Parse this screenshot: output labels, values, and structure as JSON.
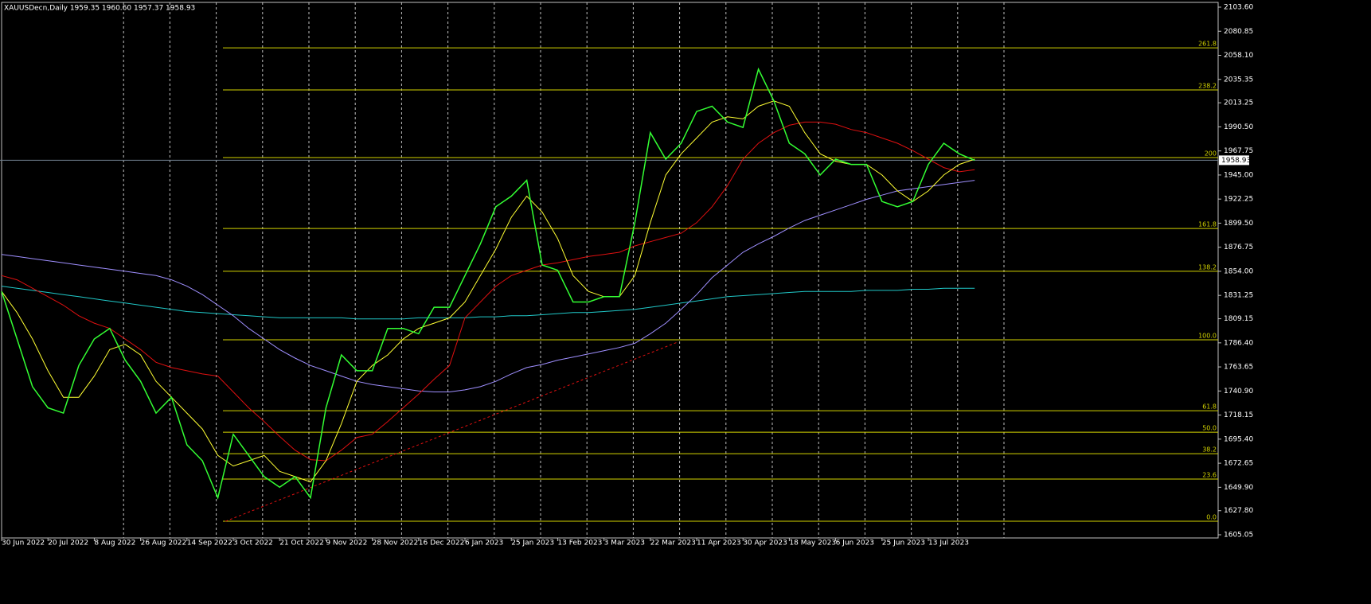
{
  "chart_data": {
    "type": "line",
    "title": "XAUUSDecn,Daily  1959.35 1960.60 1957.37 1958.93",
    "x": [
      "30 Jun 2022",
      null,
      null,
      "20 Jul 2022",
      null,
      null,
      "8 Aug 2022",
      null,
      null,
      "26 Aug 2022",
      null,
      null,
      "14 Sep 2022",
      null,
      null,
      "3 Oct 2022",
      null,
      null,
      "21 Oct 2022",
      null,
      null,
      "9 Nov 2022",
      null,
      null,
      "28 Nov 2022",
      null,
      null,
      "16 Dec 2022",
      null,
      null,
      "6 Jan 2023",
      null,
      null,
      "25 Jan 2023",
      null,
      null,
      "13 Feb 2023",
      null,
      null,
      "3 Mar 2023",
      null,
      null,
      "22 Mar 2023",
      null,
      null,
      "11 Apr 2023",
      null,
      null,
      "30 Apr 2023",
      null,
      null,
      "18 May 2023",
      null,
      null,
      "6 Jun 2023",
      null,
      null,
      "25 Jun 2023",
      null,
      null,
      "13 Jul 2023",
      null,
      null,
      null
    ],
    "series": [
      {
        "color": "#33ff33",
        "values": [
          1835,
          1790,
          1745,
          1725,
          1720,
          1765,
          1790,
          1800,
          1770,
          1750,
          1720,
          1735,
          1690,
          1675,
          1640,
          1700,
          1680,
          1660,
          1650,
          1660,
          1640,
          1725,
          1775,
          1760,
          1760,
          1800,
          1800,
          1795,
          1820,
          1820,
          1850,
          1880,
          1915,
          1925,
          1940,
          1860,
          1855,
          1825,
          1825,
          1830,
          1830,
          1900,
          1985,
          1960,
          1975,
          2005,
          2010,
          1995,
          1990,
          2045,
          2015,
          1975,
          1965,
          1945,
          1960,
          1955,
          1955,
          1920,
          1915,
          1920,
          1955,
          1975,
          1965,
          1958.93
        ]
      },
      {
        "color": "#ffff33",
        "values": [
          1835,
          1815,
          1790,
          1760,
          1735,
          1735,
          1755,
          1780,
          1785,
          1775,
          1750,
          1735,
          1720,
          1705,
          1680,
          1670,
          1675,
          1680,
          1665,
          1660,
          1655,
          1675,
          1710,
          1750,
          1765,
          1775,
          1790,
          1800,
          1805,
          1810,
          1825,
          1850,
          1875,
          1905,
          1925,
          1910,
          1885,
          1850,
          1835,
          1830,
          1830,
          1850,
          1900,
          1945,
          1965,
          1980,
          1995,
          2000,
          1998,
          2010,
          2015,
          2010,
          1985,
          1965,
          1958,
          1955,
          1955,
          1945,
          1930,
          1920,
          1930,
          1945,
          1955,
          1960
        ]
      },
      {
        "color": "#e01010",
        "values": [
          1850,
          1846,
          1838,
          1830,
          1822,
          1812,
          1805,
          1800,
          1790,
          1780,
          1768,
          1763,
          1760,
          1757,
          1755,
          1740,
          1725,
          1712,
          1698,
          1685,
          1676,
          1675,
          1685,
          1697,
          1700,
          1712,
          1725,
          1738,
          1752,
          1765,
          1810,
          1825,
          1840,
          1850,
          1855,
          1860,
          1862,
          1865,
          1868,
          1870,
          1872,
          1878,
          1882,
          1886,
          1890,
          1900,
          1915,
          1935,
          1960,
          1975,
          1985,
          1992,
          1995,
          1995,
          1993,
          1988,
          1985,
          1980,
          1975,
          1968,
          1960,
          1952,
          1948,
          1950
        ]
      },
      {
        "color": "#9f8fff",
        "values": [
          1870,
          1868,
          1866,
          1864,
          1862,
          1860,
          1858,
          1856,
          1854,
          1852,
          1850,
          1846,
          1840,
          1832,
          1822,
          1812,
          1800,
          1790,
          1780,
          1772,
          1765,
          1760,
          1755,
          1750,
          1747,
          1745,
          1743,
          1741,
          1740,
          1740,
          1742,
          1745,
          1750,
          1757,
          1763,
          1766,
          1770,
          1773,
          1776,
          1779,
          1782,
          1786,
          1795,
          1805,
          1818,
          1832,
          1848,
          1860,
          1872,
          1880,
          1887,
          1895,
          1902,
          1907,
          1912,
          1917,
          1922,
          1926,
          1930,
          1932,
          1934,
          1936,
          1938,
          1940
        ]
      },
      {
        "color": "#20c8c8",
        "values": [
          1840,
          1838,
          1836,
          1834,
          1832,
          1830,
          1828,
          1826,
          1824,
          1822,
          1820,
          1818,
          1816,
          1815,
          1814,
          1813,
          1812,
          1811,
          1810,
          1810,
          1810,
          1810,
          1810,
          1809,
          1809,
          1809,
          1809,
          1810,
          1810,
          1810,
          1810,
          1811,
          1811,
          1812,
          1812,
          1813,
          1814,
          1815,
          1815,
          1816,
          1817,
          1818,
          1820,
          1822,
          1824,
          1826,
          1828,
          1830,
          1831,
          1832,
          1833,
          1834,
          1835,
          1835,
          1835,
          1835,
          1836,
          1836,
          1836,
          1837,
          1837,
          1838,
          1838,
          1838
        ]
      }
    ],
    "ylim": [
      1605.05,
      2103.6
    ],
    "yticks": [
      {
        "value": 2103.6,
        "label": "2103.60"
      },
      {
        "value": 2080.85,
        "label": "2080.85"
      },
      {
        "value": 2058.1,
        "label": "2058.10"
      },
      {
        "value": 2035.35,
        "label": "2035.35"
      },
      2013.25,
      {
        "value": 1990.5,
        "label": "1990.50"
      },
      1967.75,
      {
        "value": 1945,
        "label": "1945.00"
      },
      1922.25,
      {
        "value": 1899.5,
        "label": "1899.50"
      },
      1876.75,
      {
        "value": 1854,
        "label": "1854.00"
      },
      1831.25,
      1809.15,
      {
        "value": 1786.4,
        "label": "1786.40"
      },
      1763.65,
      {
        "value": 1740.9,
        "label": "1740.90"
      },
      1718.15,
      {
        "value": 1695.4,
        "label": "1695.40"
      },
      1672.65,
      {
        "value": 1649.9,
        "label": "1649.90"
      },
      {
        "value": 1627.8,
        "label": "1627.80"
      },
      1605.05
    ],
    "current_price": 1958.93,
    "fib_levels": [
      {
        "value": 1617.8,
        "label": "0.0"
      },
      {
        "value": 1657.7,
        "label": "23.6"
      },
      {
        "value": 1681.7,
        "label": "38.2"
      },
      {
        "value": 1702,
        "label": "50.0"
      },
      {
        "value": 1722.3,
        "label": "61.8"
      },
      {
        "value": 1789.3,
        "label": "100.0"
      },
      {
        "value": 1854,
        "label": "138.2"
      },
      {
        "value": 1894.5,
        "label": "161.8"
      },
      {
        "value": 1961.5,
        "label": "200"
      },
      {
        "value": 2025.4,
        "label": "238.2"
      },
      {
        "value": 2065.2,
        "label": "261.8"
      }
    ],
    "fib_color": "#d4d400",
    "trendline": {
      "color": "#e01010",
      "x_index": [
        14.5,
        43.7
      ],
      "values": [
        1617.8,
        1786.7
      ]
    },
    "grid": true
  }
}
